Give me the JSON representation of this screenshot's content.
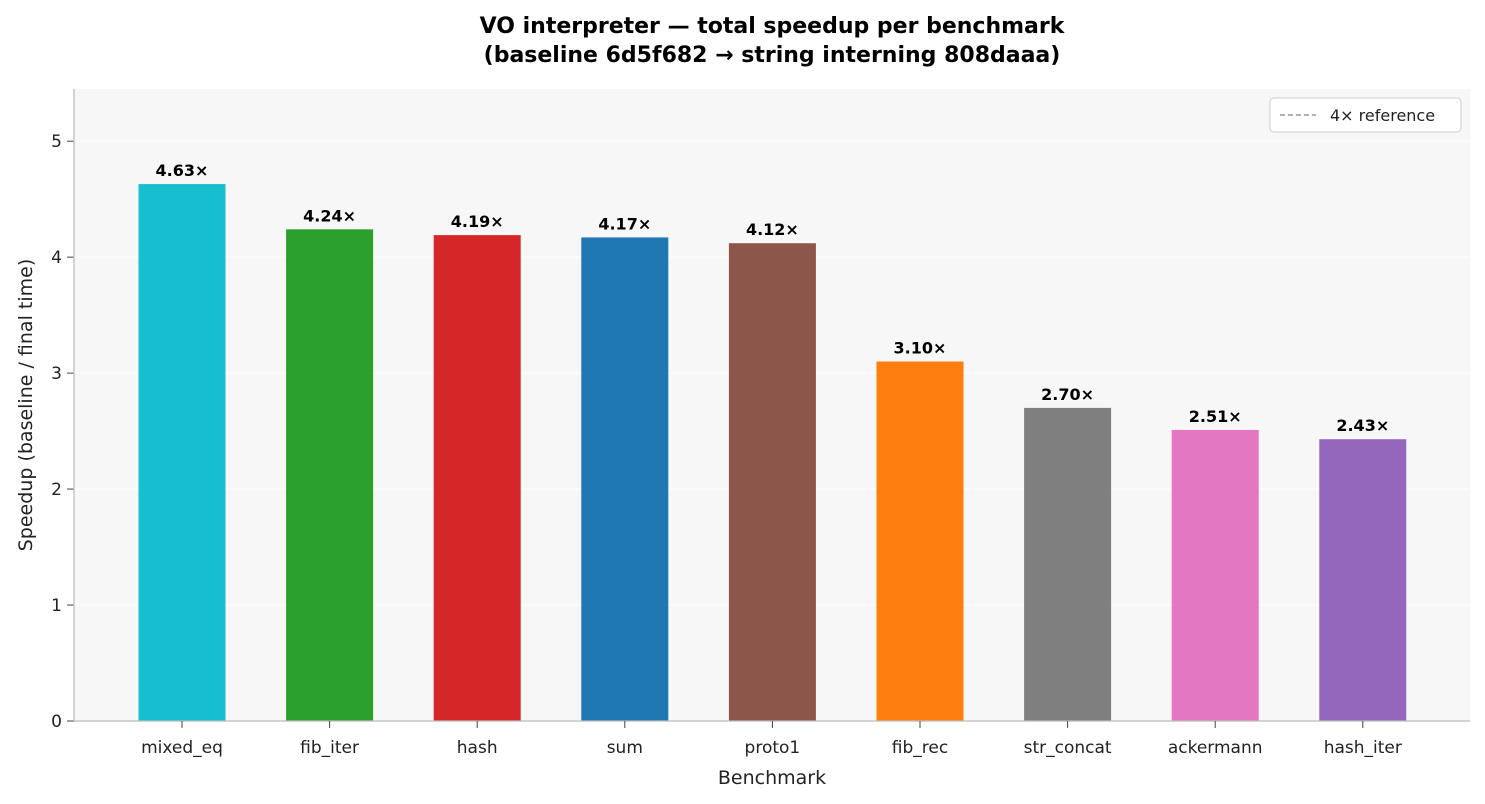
{
  "chart_data": {
    "type": "bar",
    "title": "VO interpreter — total speedup per benchmark",
    "subtitle": "(baseline 6d5f682 → string interning 808daaa)",
    "xlabel": "Benchmark",
    "ylabel": "Speedup (baseline / final time)",
    "ylim": [
      0,
      5.45
    ],
    "yticks": [
      0,
      1,
      2,
      3,
      4,
      5
    ],
    "grid": "y",
    "legend": {
      "placement": "top-right",
      "entries": [
        {
          "label": "4× reference",
          "style": "dashed",
          "color": "#999999"
        }
      ]
    },
    "reference_line": {
      "value": 4,
      "shown": false
    },
    "categories": [
      "mixed_eq",
      "fib_iter",
      "hash",
      "sum",
      "proto1",
      "fib_rec",
      "str_concat",
      "ackermann",
      "hash_iter"
    ],
    "values": [
      4.63,
      4.24,
      4.19,
      4.17,
      4.12,
      3.1,
      2.7,
      2.51,
      2.43
    ],
    "value_labels": [
      "4.63×",
      "4.24×",
      "4.19×",
      "4.17×",
      "4.12×",
      "3.10×",
      "2.70×",
      "2.51×",
      "2.43×"
    ],
    "colors": [
      "#17becf",
      "#2ca02c",
      "#d62728",
      "#1f77b4",
      "#8c564b",
      "#ff7f0e",
      "#7f7f7f",
      "#e377c2",
      "#9467bd"
    ],
    "plot_background": "#f7f7f7"
  }
}
